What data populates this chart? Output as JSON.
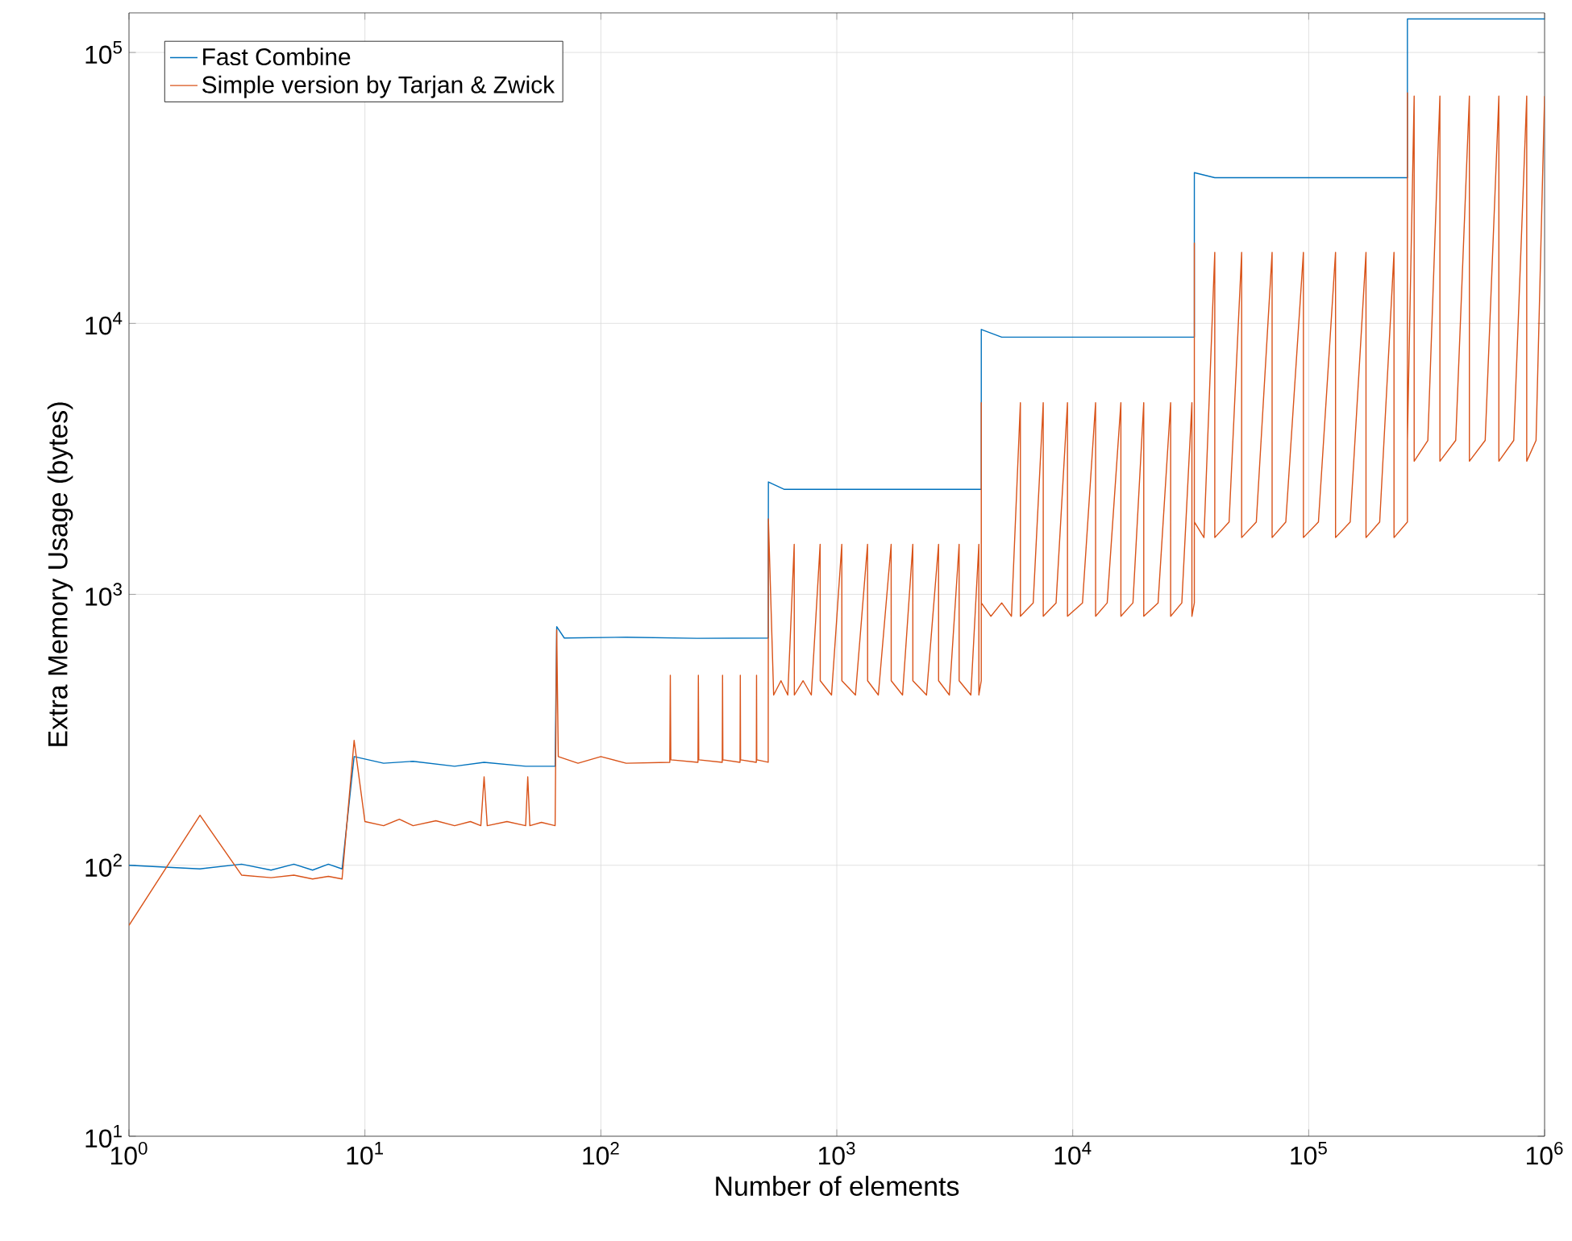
{
  "chart_data": {
    "type": "line",
    "xlabel": "Number of elements",
    "ylabel": "Extra Memory Usage (bytes)",
    "log": "xy",
    "grid": true,
    "legend": "top left",
    "xlim": [
      1,
      1000000
    ],
    "ylim": [
      10,
      140000
    ],
    "xticks": [
      {
        "value": 1,
        "label": "10$^{0}$"
      },
      {
        "value": 10,
        "label": "10$^{1}$"
      },
      {
        "value": 100,
        "label": "10$^{2}$"
      },
      {
        "value": 1000,
        "label": "10$^{3}$"
      },
      {
        "value": 10000,
        "label": "10$^{4}$"
      },
      {
        "value": 100000,
        "label": "10$^{5}$"
      },
      {
        "value": 1000000,
        "label": "10$^{6}$"
      }
    ],
    "yticks": [
      {
        "value": 10,
        "label": "10$^{1}$"
      },
      {
        "value": 100,
        "label": "10$^{2}$"
      },
      {
        "value": 1000,
        "label": "10$^{3}$"
      },
      {
        "value": 10000,
        "label": "10$^{4}$"
      },
      {
        "value": 100000,
        "label": "10$^{5}$"
      }
    ],
    "series": [
      {
        "name": "Fast Combine",
        "color": "#0072bd",
        "x": [
          1,
          2,
          3,
          4,
          5,
          6,
          7,
          8,
          9,
          12,
          16,
          24,
          32,
          48,
          64,
          65,
          70,
          128,
          256,
          512,
          513,
          600,
          4096,
          4097,
          5000,
          32768,
          32769,
          40000,
          262144,
          262145,
          1000000
        ],
        "values": [
          100,
          97,
          101,
          96,
          101,
          96,
          101,
          97,
          252,
          238,
          242,
          232,
          240,
          232,
          232,
          760,
          690,
          695,
          688,
          690,
          2600,
          2440,
          2440,
          9500,
          8900,
          8900,
          36000,
          34500,
          34500,
          133000,
          133000
        ]
      },
      {
        "name": "Simple version by Tarjan & Zwick",
        "color": "#d95319",
        "x": [
          1,
          2,
          3,
          4,
          5,
          6,
          7,
          8,
          9,
          10,
          12,
          14,
          16,
          20,
          24,
          28,
          31,
          32,
          33,
          40,
          48,
          49,
          50,
          56,
          64,
          65,
          66,
          80,
          100,
          128,
          196,
          197,
          198,
          258,
          259,
          260,
          327,
          328,
          329,
          389,
          390,
          391,
          456,
          457,
          458,
          512,
          513,
          540,
          580,
          620,
          660,
          661,
          720,
          780,
          850,
          851,
          950,
          1050,
          1051,
          1200,
          1350,
          1351,
          1500,
          1700,
          1701,
          1900,
          2100,
          2101,
          2400,
          2700,
          2701,
          3000,
          3300,
          3301,
          3700,
          4000,
          4001,
          4096,
          4097,
          4098,
          4500,
          5000,
          5500,
          6000,
          6001,
          6800,
          7500,
          7501,
          8500,
          9500,
          9501,
          11000,
          12500,
          12501,
          14000,
          16000,
          16001,
          18000,
          20000,
          20001,
          23000,
          26000,
          26001,
          29000,
          32000,
          32001,
          32768,
          32769,
          32770,
          36000,
          40000,
          40001,
          46000,
          52000,
          52001,
          60000,
          70000,
          70001,
          80000,
          95000,
          95001,
          110000,
          130000,
          130001,
          150000,
          175000,
          175001,
          200000,
          230000,
          230001,
          262144,
          262145,
          262146,
          280000,
          280001,
          320000,
          360000,
          360001,
          420000,
          480000,
          480001,
          560000,
          640000,
          640001,
          740000,
          840000,
          840001,
          920000,
          1000000
        ],
        "values": [
          60,
          153,
          92,
          90,
          92,
          89,
          91,
          89,
          289,
          145,
          140,
          148,
          140,
          146,
          140,
          145,
          140,
          212,
          140,
          145,
          140,
          212,
          140,
          144,
          140,
          740,
          252,
          238,
          252,
          238,
          240,
          503,
          245,
          240,
          503,
          245,
          240,
          503,
          245,
          240,
          503,
          245,
          240,
          503,
          245,
          240,
          1900,
          425,
          480,
          425,
          1530,
          425,
          480,
          425,
          1530,
          480,
          425,
          1530,
          480,
          425,
          1530,
          480,
          425,
          1530,
          480,
          425,
          1530,
          480,
          425,
          1530,
          480,
          425,
          1530,
          480,
          425,
          1530,
          425,
          480,
          5100,
          930,
          830,
          930,
          830,
          5100,
          830,
          930,
          5100,
          830,
          930,
          5100,
          830,
          930,
          5100,
          830,
          930,
          5100,
          830,
          930,
          5100,
          830,
          930,
          5100,
          830,
          930,
          5100,
          830,
          930,
          19800,
          1850,
          1620,
          18300,
          1620,
          1850,
          18300,
          1620,
          1850,
          18300,
          1620,
          1850,
          18300,
          1620,
          1850,
          18300,
          1620,
          1850,
          18300,
          1620,
          1850,
          18300,
          1620,
          1850,
          71000,
          3700,
          69000,
          3100,
          3700,
          69000,
          3100,
          3700,
          69000,
          3100,
          3700,
          69000,
          3100,
          3700,
          69000,
          3100,
          3700,
          69000
        ]
      }
    ]
  }
}
